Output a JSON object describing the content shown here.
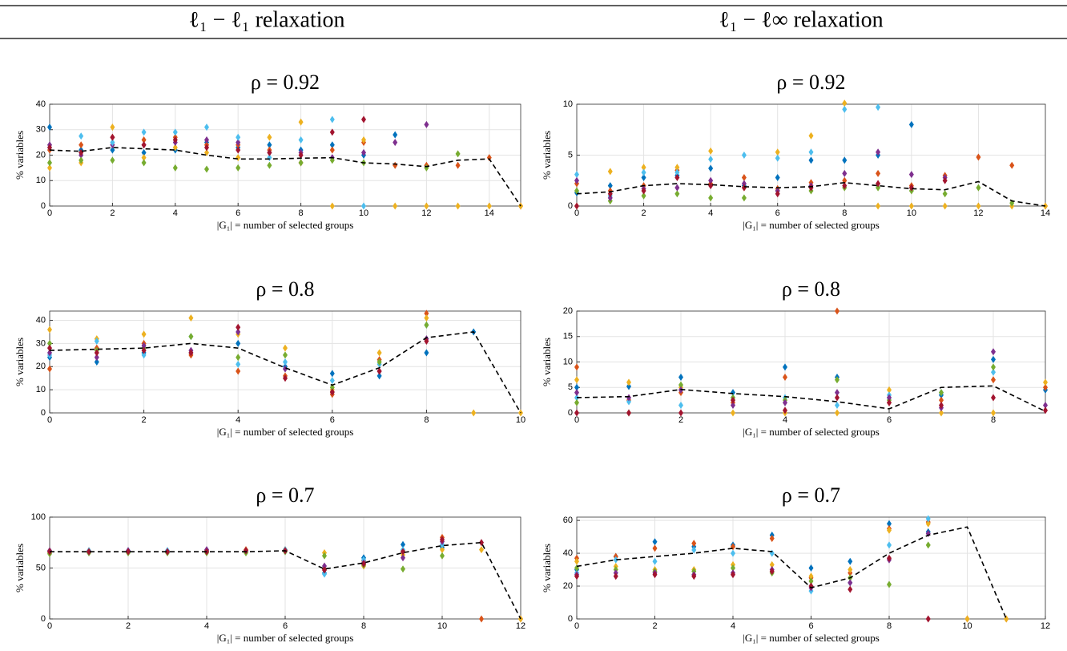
{
  "columns": [
    "ℓ₁ − ℓ₁ relaxation",
    "ℓ₁ − ℓ∞ relaxation"
  ],
  "chart_data": [
    {
      "type": "scatter",
      "title": "ρ = 0.92",
      "xlabel": "|G₁| = number of selected groups",
      "ylabel": "% variables",
      "x": [
        0,
        1,
        2,
        3,
        4,
        5,
        6,
        7,
        8,
        9,
        10,
        11,
        12,
        13,
        14,
        15
      ],
      "xlim": [
        0,
        15
      ],
      "xticks": [
        0,
        2,
        4,
        6,
        8,
        10,
        12,
        14
      ],
      "ylim": [
        0,
        40
      ],
      "yticks": [
        0,
        10,
        20,
        30,
        40
      ],
      "grid": true,
      "series": [
        {
          "color": "#0072BD",
          "values": [
            31,
            22,
            22,
            21,
            22,
            25,
            23,
            24,
            22,
            24,
            20,
            28,
            null,
            null,
            null,
            null
          ]
        },
        {
          "color": "#D95319",
          "values": [
            22,
            24,
            27,
            26,
            27,
            24,
            24,
            22,
            17,
            22,
            25,
            16,
            16,
            16,
            19,
            0
          ]
        },
        {
          "color": "#EDB120",
          "values": [
            15,
            17,
            31,
            19,
            23,
            21,
            19,
            27,
            33,
            0,
            26,
            0,
            0,
            0,
            0,
            0
          ]
        },
        {
          "color": "#7E2F8E",
          "values": [
            24,
            20,
            24,
            24,
            25,
            26,
            25,
            21,
            21,
            19,
            21,
            25,
            32,
            null,
            null,
            null
          ]
        },
        {
          "color": "#77AC30",
          "values": [
            17,
            18,
            18,
            17,
            15,
            14.5,
            15,
            16,
            17,
            18,
            17,
            null,
            15,
            20.5,
            null,
            null
          ]
        },
        {
          "color": "#4DBEEE",
          "values": [
            23,
            27.5,
            25,
            29,
            29,
            31,
            27,
            19,
            26,
            34,
            0,
            null,
            null,
            null,
            null,
            null
          ]
        },
        {
          "color": "#A2142F",
          "values": [
            23,
            21,
            27,
            24,
            26,
            23,
            22,
            21,
            20,
            29,
            34,
            null,
            null,
            null,
            null,
            null
          ]
        }
      ],
      "mean": {
        "color": "#000000",
        "style": "dashed",
        "values": [
          22,
          21.5,
          23,
          22.5,
          22,
          20,
          18.5,
          18.5,
          18.8,
          19,
          17,
          16.5,
          15.5,
          18,
          18.5,
          0
        ]
      }
    },
    {
      "type": "scatter",
      "title": "ρ = 0.92",
      "xlabel": "|G₁| = number of selected groups",
      "ylabel": "% variables",
      "x": [
        0,
        1,
        2,
        3,
        4,
        5,
        6,
        7,
        8,
        9,
        10,
        11,
        12,
        13,
        14
      ],
      "xlim": [
        0,
        14
      ],
      "xticks": [
        0,
        2,
        4,
        6,
        8,
        10,
        12,
        14
      ],
      "ylim": [
        0,
        10
      ],
      "yticks": [
        0,
        5,
        10
      ],
      "grid": true,
      "series": [
        {
          "color": "#0072BD",
          "values": [
            1.3,
            2,
            2.8,
            3,
            3.7,
            2,
            2.8,
            4.5,
            4.5,
            5,
            8,
            null,
            null,
            null,
            null
          ]
        },
        {
          "color": "#D95319",
          "values": [
            2.2,
            1.5,
            2,
            3.5,
            2.2,
            2.8,
            1.7,
            2.3,
            2.5,
            3.2,
            2,
            3,
            4.8,
            4,
            0
          ]
        },
        {
          "color": "#EDB120",
          "values": [
            0,
            3.4,
            3.8,
            3.8,
            5.4,
            1.8,
            5.3,
            6.9,
            10.1,
            0,
            0,
            0,
            0,
            0,
            0
          ]
        },
        {
          "color": "#4DBEEE",
          "values": [
            3.1,
            1,
            3.3,
            3.3,
            4.6,
            5,
            4.7,
            5.3,
            9.5,
            9.7,
            null,
            null,
            null,
            null,
            null
          ]
        },
        {
          "color": "#77AC30",
          "values": [
            1.5,
            0.5,
            1,
            1.2,
            0.8,
            0.8,
            1.5,
            1.5,
            1.8,
            1.8,
            1.5,
            1.2,
            1.8,
            0.3,
            null
          ]
        },
        {
          "color": "#7E2F8E",
          "values": [
            2.5,
            0.8,
            1.7,
            1.8,
            2.5,
            2.2,
            1.5,
            2,
            3.2,
            5.3,
            3.1,
            2.8,
            null,
            null,
            null
          ]
        },
        {
          "color": "#A2142F",
          "values": [
            0,
            1.2,
            1.5,
            2.8,
            2,
            1.8,
            1.2,
            1.8,
            2,
            2.2,
            1.8,
            2.5,
            null,
            null,
            null
          ]
        }
      ],
      "mean": {
        "color": "#000000",
        "style": "dashed",
        "values": [
          1.2,
          1.4,
          2,
          2.2,
          2.1,
          1.9,
          1.8,
          1.9,
          2.3,
          2,
          1.7,
          1.6,
          2.4,
          0.5,
          0
        ]
      }
    },
    {
      "type": "scatter",
      "title": "ρ = 0.8",
      "xlabel": "|G₁| = number of selected groups",
      "ylabel": "% variables",
      "x": [
        0,
        1,
        2,
        3,
        4,
        5,
        6,
        7,
        8,
        9,
        10
      ],
      "xlim": [
        0,
        10
      ],
      "xticks": [
        0,
        2,
        4,
        6,
        8,
        10
      ],
      "ylim": [
        0,
        44
      ],
      "yticks": [
        0,
        10,
        20,
        30,
        40
      ],
      "grid": true,
      "series": [
        {
          "color": "#0072BD",
          "values": [
            24,
            22,
            26,
            26,
            30,
            20,
            17,
            16,
            26,
            35,
            null
          ]
        },
        {
          "color": "#D95319",
          "values": [
            19,
            28,
            30,
            25,
            18,
            16,
            8,
            23,
            43,
            null,
            null
          ]
        },
        {
          "color": "#EDB120",
          "values": [
            36,
            32,
            34,
            41,
            34,
            28,
            10,
            26,
            41,
            0,
            0
          ]
        },
        {
          "color": "#4DBEEE",
          "values": [
            25,
            31,
            25,
            33,
            21,
            22,
            14,
            21,
            38,
            null,
            null
          ]
        },
        {
          "color": "#77AC30",
          "values": [
            30,
            27,
            28,
            33,
            24,
            25,
            11,
            22,
            38,
            null,
            null
          ]
        },
        {
          "color": "#7E2F8E",
          "values": [
            26,
            24,
            29,
            27,
            35,
            19,
            9,
            18,
            32,
            null,
            null
          ]
        },
        {
          "color": "#A2142F",
          "values": [
            28,
            26,
            27,
            26,
            37,
            15,
            9,
            18,
            31,
            null,
            null
          ]
        }
      ],
      "mean": {
        "color": "#000000",
        "style": "dashed",
        "values": [
          27,
          27.5,
          28,
          30,
          28,
          19.5,
          12,
          19.5,
          32.5,
          35,
          0
        ]
      }
    },
    {
      "type": "scatter",
      "title": "ρ = 0.8",
      "xlabel": "|G₁| = number of selected groups",
      "ylabel": "% variables",
      "x": [
        0,
        1,
        2,
        3,
        4,
        5,
        6,
        7,
        8,
        9
      ],
      "xlim": [
        0,
        9
      ],
      "xticks": [
        0,
        2,
        4,
        6,
        8
      ],
      "ylim": [
        0,
        20
      ],
      "yticks": [
        0,
        5,
        10,
        15,
        20
      ],
      "grid": true,
      "series": [
        {
          "color": "#0072BD",
          "values": [
            5,
            5.2,
            7,
            4,
            9,
            7,
            3,
            3.5,
            10.5,
            4.5
          ]
        },
        {
          "color": "#D95319",
          "values": [
            9,
            2.5,
            4,
            2,
            7,
            20,
            2,
            2.5,
            6.5,
            5
          ]
        },
        {
          "color": "#EDB120",
          "values": [
            6.5,
            6,
            5,
            0,
            0,
            0,
            4.5,
            0,
            0,
            6
          ]
        },
        {
          "color": "#4DBEEE",
          "values": [
            3,
            2.2,
            1.5,
            3,
            3,
            1.5,
            3.5,
            4,
            8,
            null
          ]
        },
        {
          "color": "#77AC30",
          "values": [
            2,
            0,
            5.5,
            3,
            2.5,
            6.5,
            2.5,
            4,
            9,
            null
          ]
        },
        {
          "color": "#7E2F8E",
          "values": [
            4,
            3,
            4.5,
            1.5,
            2,
            4,
            3,
            1,
            12,
            1.5
          ]
        },
        {
          "color": "#A2142F",
          "values": [
            0,
            0,
            0,
            2.5,
            0.5,
            3,
            2,
            1.5,
            3,
            0.5
          ]
        }
      ],
      "mean": {
        "color": "#000000",
        "style": "dashed",
        "values": [
          3,
          3.2,
          4.6,
          3.8,
          3.2,
          2.2,
          0.8,
          5,
          5.3,
          0.3
        ]
      }
    },
    {
      "type": "scatter",
      "title": "ρ = 0.7",
      "xlabel": "|G₁| = number of selected groups",
      "ylabel": "% variables",
      "x": [
        0,
        1,
        2,
        3,
        4,
        5,
        6,
        7,
        8,
        9,
        10,
        11,
        12
      ],
      "xlim": [
        0,
        12
      ],
      "xticks": [
        0,
        2,
        4,
        6,
        8,
        10,
        12
      ],
      "ylim": [
        0,
        100
      ],
      "yticks": [
        0,
        50,
        100
      ],
      "grid": true,
      "series": [
        {
          "color": "#0072BD",
          "values": [
            66,
            66,
            67,
            67,
            67,
            66,
            67,
            45,
            60,
            73,
            70,
            null,
            null
          ]
        },
        {
          "color": "#D95319",
          "values": [
            67,
            67,
            66,
            66,
            67,
            68,
            68,
            49,
            57,
            67,
            80,
            0,
            0
          ]
        },
        {
          "color": "#EDB120",
          "values": [
            65,
            66,
            66,
            66,
            66,
            66,
            68,
            65,
            52,
            63,
            68,
            68,
            0
          ]
        },
        {
          "color": "#4DBEEE",
          "values": [
            66,
            67,
            66,
            67,
            66,
            66,
            68,
            44,
            58,
            68,
            73,
            null,
            null
          ]
        },
        {
          "color": "#77AC30",
          "values": [
            64,
            65,
            65,
            65,
            65,
            65,
            66,
            62,
            53,
            49,
            62,
            null,
            null
          ]
        },
        {
          "color": "#7E2F8E",
          "values": [
            67,
            66,
            67,
            66,
            68,
            67,
            67,
            52,
            55,
            60,
            76,
            null,
            null
          ]
        },
        {
          "color": "#A2142F",
          "values": [
            66,
            66,
            66,
            66,
            66,
            67,
            67,
            48,
            54,
            66,
            78,
            75,
            null
          ]
        }
      ],
      "mean": {
        "color": "#000000",
        "style": "dashed",
        "values": [
          66,
          66,
          66,
          66,
          66,
          66,
          67,
          49,
          55,
          65,
          72,
          75,
          0
        ]
      }
    },
    {
      "type": "scatter",
      "title": "ρ = 0.7",
      "xlabel": "|G₁| = number of selected groups",
      "ylabel": "% variables",
      "x": [
        0,
        1,
        2,
        3,
        4,
        5,
        6,
        7,
        8,
        9,
        10,
        11
      ],
      "xlim": [
        0,
        12
      ],
      "xticks": [
        0,
        2,
        4,
        6,
        8,
        10,
        12
      ],
      "ylim": [
        0,
        62
      ],
      "yticks": [
        0,
        20,
        40,
        60
      ],
      "grid": true,
      "series": [
        {
          "color": "#0072BD",
          "values": [
            30,
            38,
            47,
            44,
            45,
            51,
            31,
            35,
            58,
            53,
            null,
            null
          ]
        },
        {
          "color": "#D95319",
          "values": [
            37,
            38,
            43,
            46,
            44,
            49,
            25,
            28,
            55,
            59,
            0,
            0
          ]
        },
        {
          "color": "#EDB120",
          "values": [
            35,
            32,
            30,
            30,
            33,
            33,
            26,
            30,
            54,
            58,
            0,
            0
          ]
        },
        {
          "color": "#4DBEEE",
          "values": [
            28,
            36,
            35,
            42,
            40,
            40,
            17,
            22,
            45,
            61,
            null,
            null
          ]
        },
        {
          "color": "#77AC30",
          "values": [
            31,
            30,
            29,
            29,
            31,
            28,
            23,
            25,
            21,
            45,
            null,
            null
          ]
        },
        {
          "color": "#7E2F8E",
          "values": [
            27,
            28,
            28,
            27,
            28,
            30,
            19,
            22,
            36,
            52,
            null,
            null
          ]
        },
        {
          "color": "#A2142F",
          "values": [
            26,
            26,
            27,
            26,
            27,
            29,
            20,
            18,
            37,
            0,
            null,
            null
          ]
        }
      ],
      "mean": {
        "color": "#000000",
        "style": "dashed",
        "values": [
          32,
          36,
          38,
          40,
          43,
          41,
          19,
          25,
          40,
          51,
          56,
          0
        ]
      }
    }
  ]
}
